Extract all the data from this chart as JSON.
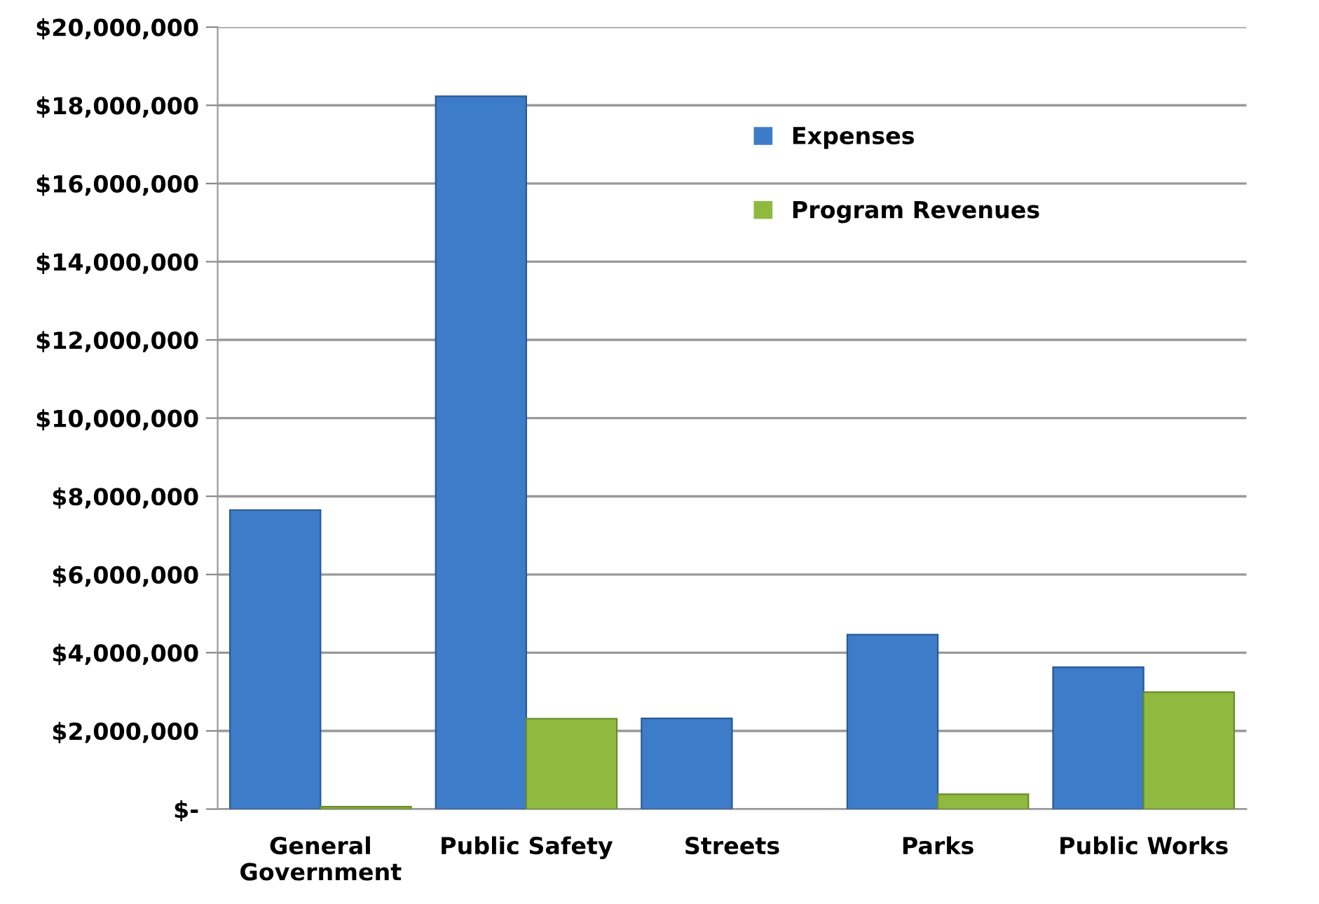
{
  "chart_data": {
    "type": "bar",
    "categories": [
      "General\nGovernment",
      "Public Safety",
      "Streets",
      "Parks",
      "Public Works"
    ],
    "series": [
      {
        "name": "Expenses",
        "color": "#3d7cc9",
        "values": [
          7650000,
          18230000,
          2320000,
          4460000,
          3630000
        ]
      },
      {
        "name": "Program Revenues",
        "color": "#8fba3f",
        "values": [
          60000,
          2310000,
          null,
          380000,
          2990000
        ]
      }
    ],
    "ylim": [
      0,
      20000000
    ],
    "yticks": [
      {
        "value": 0,
        "label": "$-"
      },
      {
        "value": 2000000,
        "label": "$2,000,000"
      },
      {
        "value": 4000000,
        "label": "$4,000,000"
      },
      {
        "value": 6000000,
        "label": "$6,000,000"
      },
      {
        "value": 8000000,
        "label": "$8,000,000"
      },
      {
        "value": 10000000,
        "label": "$10,000,000"
      },
      {
        "value": 12000000,
        "label": "$12,000,000"
      },
      {
        "value": 14000000,
        "label": "$14,000,000"
      },
      {
        "value": 16000000,
        "label": "$16,000,000"
      },
      {
        "value": 18000000,
        "label": "$18,000,000"
      },
      {
        "value": 20000000,
        "label": "$20,000,000"
      }
    ],
    "grid": "y",
    "legend": "top right"
  }
}
